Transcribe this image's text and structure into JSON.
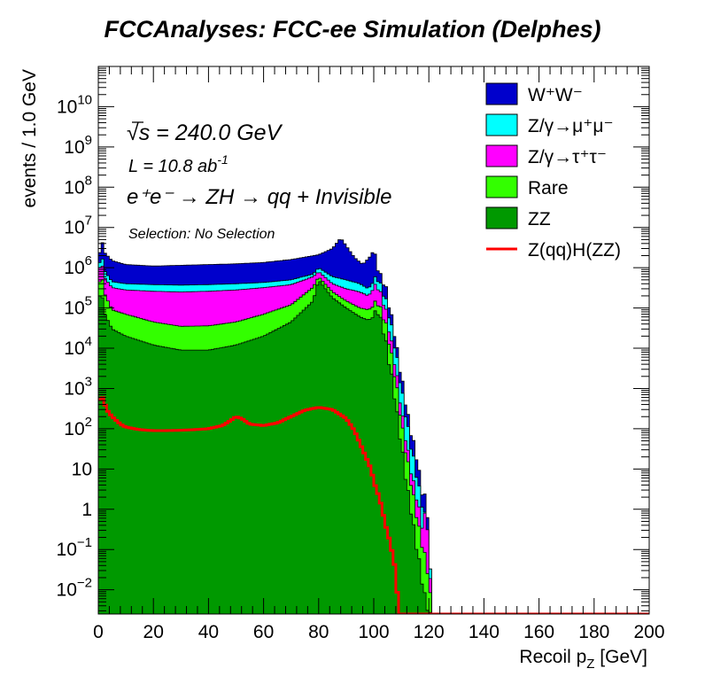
{
  "title": "FCCAnalyses: FCC-ee Simulation (Delphes)",
  "annotations": {
    "sqrt_s_symbol": "√s",
    "sqrt_s_rest": " = 240.0 GeV",
    "lumi_base": "L = 10.8 ab",
    "lumi_exp": "-1",
    "process": "e⁺e⁻ → ZH → qq + Invisible",
    "selection": "Selection: No Selection"
  },
  "chart_data": {
    "type": "area",
    "stacked": true,
    "xlabel": "Recoil p",
    "xlabel_sub": "Z",
    "xlabel_unit": " [GeV]",
    "ylabel": "events / 1.0 GeV",
    "xlim": [
      0,
      200
    ],
    "ylim": [
      0.0025,
      100000000000
    ],
    "log_y": true,
    "bin_width": 1.0,
    "legend_position": "top-right",
    "x_ticks": [
      0,
      20,
      40,
      60,
      80,
      100,
      120,
      140,
      160,
      180,
      200
    ],
    "y_ticks": [
      {
        "v": 0.01,
        "base": "10",
        "exp": "−2"
      },
      {
        "v": 0.1,
        "base": "10",
        "exp": "−1"
      },
      {
        "v": 1,
        "base": "1",
        "exp": ""
      },
      {
        "v": 10,
        "base": "10",
        "exp": ""
      },
      {
        "v": 100,
        "base": "10",
        "exp": "2"
      },
      {
        "v": 1000,
        "base": "10",
        "exp": "3"
      },
      {
        "v": 10000,
        "base": "10",
        "exp": "4"
      },
      {
        "v": 100000,
        "base": "10",
        "exp": "5"
      },
      {
        "v": 1000000,
        "base": "10",
        "exp": "6"
      },
      {
        "v": 10000000,
        "base": "10",
        "exp": "7"
      },
      {
        "v": 100000000,
        "base": "10",
        "exp": "8"
      },
      {
        "v": 1000000000,
        "base": "10",
        "exp": "9"
      },
      {
        "v": 10000000000,
        "base": "10",
        "exp": "10"
      }
    ],
    "stack_cumulative_upper_edges": [
      {
        "name": "WW",
        "label": "W⁺W⁻",
        "color": "#0000cc",
        "x": [
          0,
          1,
          2,
          5,
          10,
          20,
          30,
          40,
          50,
          60,
          70,
          80,
          85,
          88,
          90,
          93,
          96,
          99,
          100,
          101,
          102,
          103,
          104,
          105,
          106,
          107,
          108,
          109,
          110,
          111,
          112,
          113,
          114,
          115,
          116,
          117,
          118,
          119,
          120,
          121
        ],
        "values": [
          800000,
          7000000,
          2500000,
          1500000,
          1200000,
          1100000,
          1150000,
          1200000,
          1250000,
          1350000,
          1600000,
          2100000,
          3000000,
          5500000,
          3500000,
          1800000,
          1200000,
          2000000,
          2800000,
          1700000,
          650000,
          550000,
          400000,
          200000,
          80000,
          40000,
          15000,
          5000,
          2000,
          800,
          300,
          120,
          60,
          30,
          15,
          4,
          2,
          2,
          0.3,
          0.0025
        ]
      },
      {
        "name": "mumu",
        "label": "Z/γ→μ⁺μ⁻",
        "color": "#00ffff",
        "x": [
          0,
          1,
          2,
          5,
          10,
          20,
          30,
          40,
          50,
          60,
          70,
          78,
          80,
          85,
          90,
          95,
          98,
          100,
          101,
          102,
          103,
          104,
          105,
          106,
          107,
          108,
          109,
          110,
          111,
          112,
          113,
          114,
          115,
          116,
          117,
          118,
          119,
          120,
          121
        ],
        "values": [
          600000,
          3000000,
          900000,
          450000,
          400000,
          380000,
          370000,
          380000,
          400000,
          430000,
          500000,
          700000,
          1000000,
          600000,
          500000,
          400000,
          300000,
          450000,
          800000,
          400000,
          300000,
          200000,
          100000,
          50000,
          20000,
          8000,
          3000,
          1000,
          400,
          150,
          60,
          25,
          12,
          5,
          2,
          1,
          0.5,
          0.3,
          0.0025
        ]
      },
      {
        "name": "tautau",
        "label": "Z/γ→τ⁺τ⁻",
        "color": "#ff00ff",
        "x": [
          0,
          1,
          2,
          5,
          10,
          20,
          30,
          40,
          50,
          60,
          70,
          78,
          80,
          85,
          90,
          95,
          98,
          100,
          101,
          102,
          103,
          104,
          105,
          106,
          107,
          108,
          109,
          110,
          111,
          112,
          113,
          114,
          115,
          116,
          117,
          118,
          119,
          120,
          121
        ],
        "values": [
          500000,
          2000000,
          600000,
          320000,
          280000,
          260000,
          250000,
          260000,
          280000,
          320000,
          380000,
          600000,
          800000,
          400000,
          300000,
          250000,
          200000,
          300000,
          500000,
          250000,
          180000,
          120000,
          50000,
          20000,
          8000,
          3000,
          1000,
          300,
          100,
          40,
          15,
          6,
          3,
          1.5,
          0.6,
          0.3,
          1.5,
          0.1,
          0.0025
        ]
      },
      {
        "name": "rare",
        "label": "Rare",
        "color": "#33ff00",
        "x": [
          0,
          1,
          2,
          5,
          10,
          20,
          30,
          40,
          50,
          60,
          70,
          78,
          80,
          85,
          90,
          95,
          98,
          100,
          101,
          102,
          103,
          104,
          105,
          106,
          107,
          108,
          109,
          110,
          111,
          112,
          113,
          114,
          115,
          116,
          117,
          118,
          119,
          120,
          121
        ],
        "values": [
          200000,
          1000000,
          250000,
          90000,
          70000,
          45000,
          35000,
          36000,
          45000,
          70000,
          120000,
          330000,
          600000,
          250000,
          150000,
          100000,
          90000,
          110000,
          200000,
          100000,
          80000,
          50000,
          25000,
          10000,
          4000,
          1500,
          500,
          150,
          50,
          20,
          8,
          3,
          1.2,
          0.5,
          0.2,
          0.1,
          0.05,
          0.02,
          0.0025
        ]
      },
      {
        "name": "ZZ",
        "label": "ZZ",
        "color": "#009900",
        "x": [
          0,
          1,
          2,
          5,
          10,
          20,
          30,
          40,
          50,
          60,
          70,
          78,
          80,
          85,
          90,
          95,
          98,
          100,
          101,
          102,
          103,
          104,
          105,
          106,
          107,
          108,
          109,
          110,
          111,
          112,
          113,
          114,
          115,
          116,
          117,
          118,
          119,
          120,
          121
        ],
        "values": [
          100000,
          400000,
          80000,
          30000,
          20000,
          12000,
          9000,
          9000,
          12000,
          20000,
          45000,
          150000,
          500000,
          180000,
          100000,
          60000,
          50000,
          60000,
          120000,
          60000,
          40000,
          20000,
          8000,
          3000,
          1200,
          400,
          120,
          40,
          12,
          4,
          1.5,
          0.6,
          0.2,
          0.08,
          0.03,
          0.01,
          0.005,
          0.003,
          0.0025
        ]
      }
    ],
    "signal": {
      "name": "ZqqHZZ",
      "label": "Z(qq)H(ZZ)",
      "color": "#ff0000",
      "x": [
        0,
        1,
        2,
        3,
        5,
        8,
        10,
        15,
        20,
        25,
        30,
        35,
        40,
        45,
        48,
        50,
        52,
        55,
        60,
        65,
        70,
        75,
        80,
        85,
        90,
        93,
        96,
        99,
        100,
        101,
        102,
        103,
        104,
        105,
        106,
        107,
        108,
        109,
        110,
        200
      ],
      "values": [
        400,
        700,
        500,
        300,
        200,
        130,
        110,
        95,
        90,
        90,
        92,
        95,
        100,
        120,
        160,
        200,
        180,
        130,
        120,
        140,
        200,
        290,
        340,
        300,
        180,
        90,
        30,
        10,
        5,
        3,
        2,
        1,
        0.5,
        0.25,
        0.15,
        0.06,
        0.03,
        0.0025,
        0.0025,
        0.0025
      ]
    }
  }
}
